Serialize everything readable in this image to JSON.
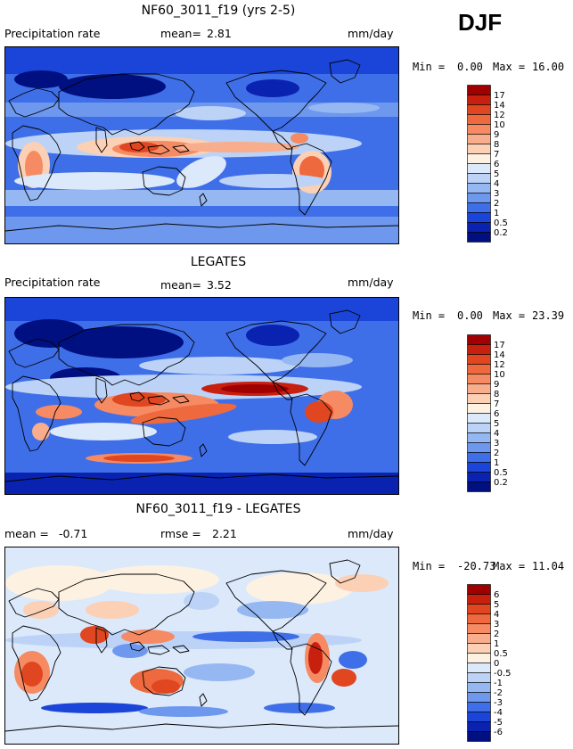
{
  "season": "DJF",
  "chart_data": [
    {
      "type": "heatmap",
      "title": "NF60_3011_f19 (yrs 2-5)",
      "field_label": "Precipitation rate",
      "stat1_label": "mean=",
      "stat1_value": "2.81",
      "units": "mm/day",
      "min_label": "Min =",
      "min_value": "0.00",
      "max_label": "Max =",
      "max_value": "16.00",
      "colorbar": {
        "levels": [
          "17",
          "14",
          "12",
          "10",
          "9",
          "8",
          "7",
          "6",
          "5",
          "4",
          "3",
          "2",
          "1",
          "0.5",
          "0.2"
        ],
        "colors": [
          "#a00000",
          "#c8200f",
          "#e0461f",
          "#ee6a3e",
          "#f58a63",
          "#f8ad8c",
          "#fbd0b5",
          "#fdf1e2",
          "#dce9fa",
          "#bcd3f7",
          "#96b8f2",
          "#6e98ee",
          "#3f6fe8",
          "#1b45d8",
          "#0a22b0",
          "#001080"
        ]
      }
    },
    {
      "type": "heatmap",
      "title": "LEGATES",
      "field_label": "Precipitation rate",
      "stat1_label": "mean=",
      "stat1_value": "3.52",
      "units": "mm/day",
      "min_label": "Min =",
      "min_value": "0.00",
      "max_label": "Max =",
      "max_value": "23.39",
      "colorbar": {
        "levels": [
          "17",
          "14",
          "12",
          "10",
          "9",
          "8",
          "7",
          "6",
          "5",
          "4",
          "3",
          "2",
          "1",
          "0.5",
          "0.2"
        ],
        "colors": [
          "#a00000",
          "#c8200f",
          "#e0461f",
          "#ee6a3e",
          "#f58a63",
          "#f8ad8c",
          "#fbd0b5",
          "#fdf1e2",
          "#dce9fa",
          "#bcd3f7",
          "#96b8f2",
          "#6e98ee",
          "#3f6fe8",
          "#1b45d8",
          "#0a22b0",
          "#001080"
        ]
      }
    },
    {
      "type": "heatmap",
      "title": "NF60_3011_f19 - LEGATES",
      "stat1_label": "mean =",
      "stat1_value": "-0.71",
      "stat2_label": "rmse =",
      "stat2_value": "2.21",
      "units": "mm/day",
      "min_label": "Min =",
      "min_value": "-20.73",
      "max_label": "Max =",
      "max_value": "11.04",
      "colorbar": {
        "levels": [
          "6",
          "5",
          "4",
          "3",
          "2",
          "1",
          "0.5",
          "0",
          "-0.5",
          "-1",
          "-2",
          "-3",
          "-4",
          "-5",
          "-6"
        ],
        "colors": [
          "#a00000",
          "#c8200f",
          "#e0461f",
          "#ee6a3e",
          "#f58a63",
          "#f8ad8c",
          "#fbd0b5",
          "#fdf1e2",
          "#dce9fa",
          "#bcd3f7",
          "#96b8f2",
          "#6e98ee",
          "#3f6fe8",
          "#1b45d8",
          "#0a22b0",
          "#001080"
        ]
      }
    }
  ]
}
